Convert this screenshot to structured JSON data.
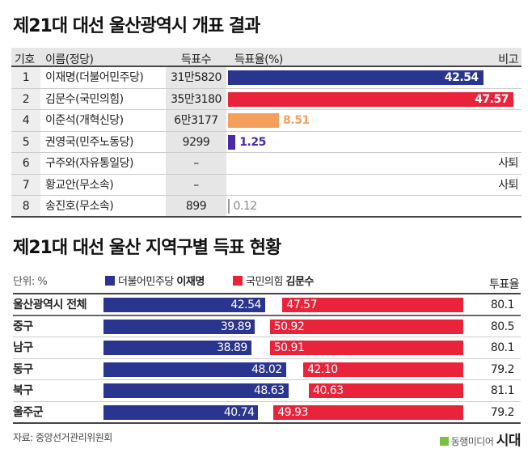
{
  "title1": "제21대 대선 울산광역시 개표 결과",
  "title2": "제21대 대선 울산 지역구별 득표 현황",
  "colors": {
    "blue": "#2a3590",
    "red": "#e8233a",
    "orange": "#f5a05a",
    "purple": "#4b2aa8",
    "gray": "#999999"
  },
  "chart_data": [
    {
      "type": "table",
      "headers": [
        "기호",
        "이름(정당)",
        "득표수",
        "득표율(%)",
        "비고"
      ],
      "rows": [
        {
          "no": "1",
          "name": "이재명(더불어민주당)",
          "votes": "31만5820",
          "pct": 42.54,
          "pct_label": "42.54",
          "note": "",
          "color": "#2a3590",
          "label_inside": true
        },
        {
          "no": "2",
          "name": "김문수(국민의힘)",
          "votes": "35만3180",
          "pct": 47.57,
          "pct_label": "47.57",
          "note": "",
          "color": "#e8233a",
          "label_inside": true
        },
        {
          "no": "4",
          "name": "이준석(개혁신당)",
          "votes": "6만3177",
          "pct": 8.51,
          "pct_label": "8.51",
          "note": "",
          "color": "#f5a05a",
          "label_inside": false
        },
        {
          "no": "5",
          "name": "권영국(민주노동당)",
          "votes": "9299",
          "pct": 1.25,
          "pct_label": "1.25",
          "note": "",
          "color": "#4b2aa8",
          "label_inside": false
        },
        {
          "no": "6",
          "name": "구주와(자유통일당)",
          "votes": "–",
          "pct": null,
          "pct_label": "",
          "note": "사퇴",
          "color": "",
          "label_inside": false
        },
        {
          "no": "7",
          "name": "황교안(무소속)",
          "votes": "–",
          "pct": null,
          "pct_label": "",
          "note": "사퇴",
          "color": "",
          "label_inside": false
        },
        {
          "no": "8",
          "name": "송진호(무소속)",
          "votes": "899",
          "pct": 0.12,
          "pct_label": "0.12",
          "note": "",
          "color": "#999999",
          "label_inside": false
        }
      ]
    },
    {
      "type": "bar",
      "unit": "단위: %",
      "legend": [
        {
          "party": "더불어민주당",
          "name": "이재명",
          "color": "#2a3590"
        },
        {
          "party": "국민의힘",
          "name": "김문수",
          "color": "#e8233a"
        }
      ],
      "turnout_header": "투표율",
      "categories": [
        "울산광역시 전체",
        "중구",
        "남구",
        "동구",
        "북구",
        "울주군"
      ],
      "series": [
        {
          "name": "더불어민주당 이재명",
          "values": [
            42.54,
            39.89,
            38.89,
            48.02,
            48.63,
            40.74
          ],
          "labels": [
            "42.54",
            "39.89",
            "38.89",
            "48.02",
            "48.63",
            "40.74"
          ]
        },
        {
          "name": "국민의힘 김문수",
          "values": [
            47.57,
            50.92,
            50.91,
            42.1,
            40.63,
            49.93
          ],
          "labels": [
            "47.57",
            "50.92",
            "50.91",
            "42.10",
            "40.63",
            "49.93"
          ]
        }
      ],
      "turnout": [
        "80.1",
        "80.5",
        "80.1",
        "79.2",
        "81.1",
        "79.2"
      ]
    }
  ],
  "source": "자료: 중앙선거관리위원회",
  "logo": {
    "text": "동행미디어",
    "brand": "시대"
  }
}
